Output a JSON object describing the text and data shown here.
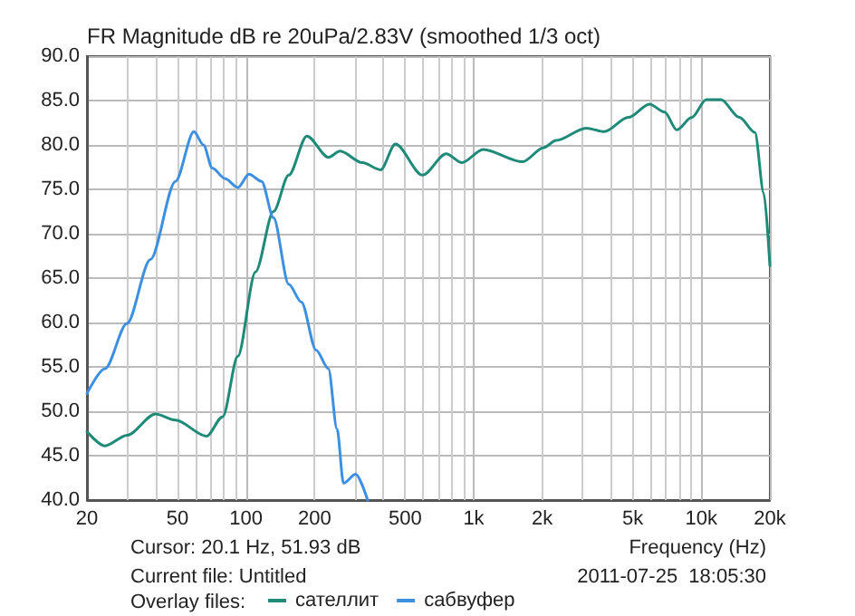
{
  "chart_data": {
    "type": "line",
    "title": "FR Magnitude dB re 20uPa/2.83V (smoothed 1/3 oct)",
    "xlabel": "Frequency (Hz)",
    "log": "x",
    "grid": true,
    "legend": "bottom",
    "marker": "none",
    "line_style": "solid",
    "xlim": [
      20,
      20000
    ],
    "xticks": [
      20,
      50,
      100,
      200,
      500,
      {
        "value": 1000,
        "label": "1k"
      },
      {
        "value": 2000,
        "label": "2k"
      },
      {
        "value": 5000,
        "label": "5k"
      },
      {
        "value": 10000,
        "label": "10k"
      },
      {
        "value": 20000,
        "label": "20k"
      }
    ],
    "ylim": [
      40,
      90
    ],
    "yticks": [
      {
        "value": 40,
        "label": "40.0"
      },
      {
        "value": 45,
        "label": "45.0"
      },
      {
        "value": 50,
        "label": "50.0"
      },
      {
        "value": 55,
        "label": "55.0"
      },
      {
        "value": 60,
        "label": "60.0"
      },
      {
        "value": 65,
        "label": "65.0"
      },
      {
        "value": 70,
        "label": "70.0"
      },
      {
        "value": 75,
        "label": "75.0"
      },
      {
        "value": 80,
        "label": "80.0"
      },
      {
        "value": 85,
        "label": "85.0"
      },
      {
        "value": 90,
        "label": "90.0"
      }
    ],
    "annotations": [
      "Cursor: 20.1 Hz, 51.93 dB",
      "Current file: Untitled",
      "2011-07-25  18:05:30",
      "Overlay files:"
    ],
    "series": [
      {
        "name": "сателлит",
        "color": "#1f8a78",
        "x": [
          20,
          24,
          30,
          40,
          49,
          67,
          79,
          92,
          110,
          132,
          154,
          185,
          230,
          259,
          324,
          390,
          453,
          596,
          757,
          887,
          1100,
          1640,
          2030,
          2300,
          3120,
          3750,
          4780,
          5920,
          6900,
          7800,
          9090,
          10500,
          12200,
          14700,
          17200,
          18800,
          20000
        ],
        "values": [
          47.7,
          46.1,
          47.3,
          49.7,
          49.0,
          47.2,
          49.4,
          56.2,
          65.7,
          72.5,
          76.6,
          81.0,
          78.6,
          79.3,
          78.0,
          77.2,
          80.1,
          76.6,
          79.0,
          78.0,
          79.5,
          78.1,
          79.7,
          80.5,
          81.9,
          81.5,
          83.1,
          84.6,
          83.7,
          81.7,
          83.1,
          85.1,
          85.1,
          83.1,
          81.4,
          74.6,
          66.4
        ]
      },
      {
        "name": "сабвуфер",
        "color": "#3d8fe0",
        "x": [
          20,
          24,
          30,
          38,
          49,
          59,
          65,
          71,
          81,
          92,
          103,
          117,
          132,
          154,
          175,
          203,
          230,
          251,
          268,
          303,
          342
        ],
        "values": [
          52.0,
          54.8,
          59.9,
          67.1,
          75.9,
          81.5,
          80.0,
          77.4,
          76.2,
          75.2,
          76.7,
          75.9,
          71.8,
          64.3,
          62.3,
          56.9,
          54.8,
          48.0,
          41.9,
          42.9,
          40.0
        ]
      }
    ]
  }
}
